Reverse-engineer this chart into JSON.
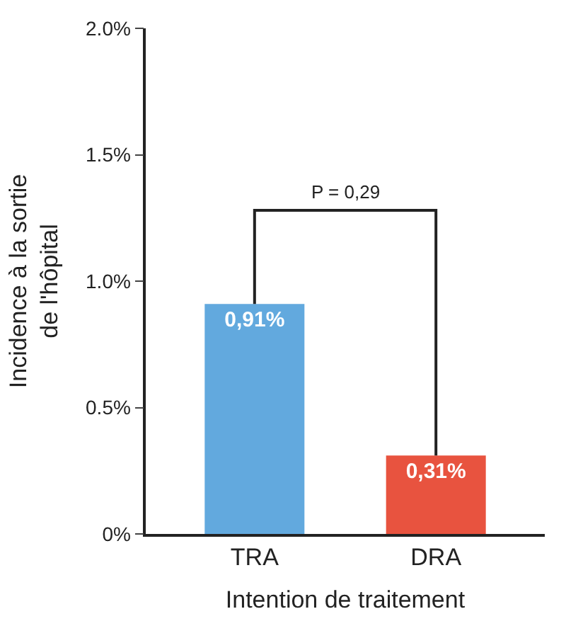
{
  "chart_data": {
    "type": "bar",
    "xlabel": "Intention de traitement",
    "ylabel": "Incidence à la sortie\nde l'hôpital",
    "categories": [
      "TRA",
      "DRA"
    ],
    "values": [
      0.91,
      0.31
    ],
    "colors": [
      "#62a9de",
      "#e8533f"
    ],
    "value_labels": [
      "0,91%",
      "0,31%"
    ],
    "ylim": [
      0,
      2
    ],
    "yticks": [
      {
        "value": 0,
        "label": "0%"
      },
      {
        "value": 0.5,
        "label": "0.5%"
      },
      {
        "value": 1,
        "label": "1.0%"
      },
      {
        "value": 1.5,
        "label": "1.5%"
      },
      {
        "value": 2,
        "label": "2.0%"
      }
    ],
    "annotations": [
      "P = 0,29"
    ]
  }
}
